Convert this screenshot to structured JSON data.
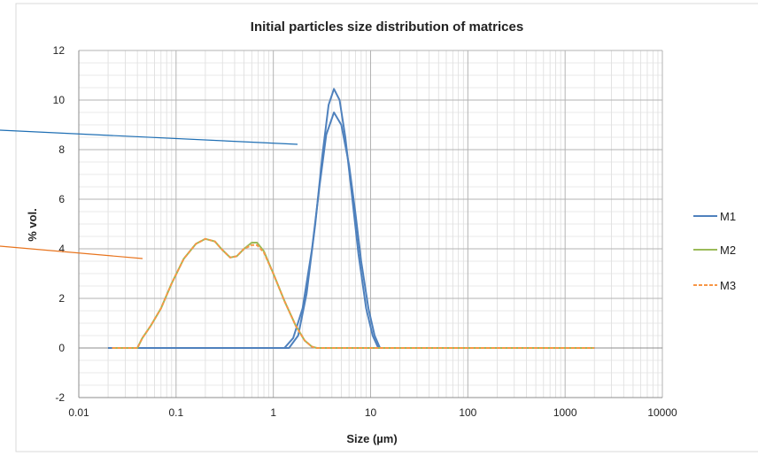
{
  "chart_data": {
    "type": "line",
    "title": "Initial particles size distribution of matrices",
    "xlabel": "Size (µm)",
    "ylabel": "% vol.",
    "x_scale": "log",
    "xlim": [
      0.01,
      10000
    ],
    "ylim": [
      -2,
      12
    ],
    "x_ticks": [
      "0.01",
      "0.1",
      "1",
      "10",
      "100",
      "1000",
      "10000"
    ],
    "y_ticks": [
      "-2",
      "0",
      "2",
      "4",
      "6",
      "8",
      "10",
      "12"
    ],
    "grid": true,
    "legend_position": "right",
    "series": [
      {
        "name": "M1",
        "color": "#4f81bd",
        "style": "solid",
        "curves": [
          {
            "x": [
              0.02,
              1.3,
              1.6,
              2.0,
              2.5,
              3.0,
              3.5,
              4.2,
              5.0,
              6.0,
              7.0,
              8.0,
              9.5,
              11.0,
              12.5,
              2000
            ],
            "y": [
              0,
              0,
              0.4,
              1.6,
              4.0,
              6.6,
              8.6,
              9.5,
              9.0,
              7.4,
              5.4,
              3.5,
              1.6,
              0.5,
              0,
              0
            ]
          },
          {
            "x": [
              0.02,
              1.45,
              1.8,
              2.2,
              2.7,
              3.2,
              3.7,
              4.2,
              4.8,
              5.5,
              6.5,
              7.5,
              9.0,
              10.5,
              12.0,
              2000
            ],
            "y": [
              0,
              0,
              0.5,
              2.2,
              5.0,
              7.8,
              9.8,
              10.45,
              10.0,
              8.5,
              6.0,
              3.8,
              1.6,
              0.5,
              0,
              0
            ]
          }
        ]
      },
      {
        "name": "M2",
        "color": "#9bbb59",
        "style": "solid",
        "curves": [
          {
            "x": [
              0.022,
              0.04,
              0.045,
              0.055,
              0.07,
              0.09,
              0.12,
              0.16,
              0.2,
              0.25,
              0.3,
              0.36,
              0.42,
              0.5,
              0.6,
              0.68,
              0.8,
              1.0,
              1.3,
              1.7,
              2.1,
              2.5,
              2.8,
              2000
            ],
            "y": [
              0,
              0,
              0.4,
              0.9,
              1.6,
              2.6,
              3.6,
              4.2,
              4.4,
              4.3,
              3.95,
              3.65,
              3.7,
              4.0,
              4.25,
              4.25,
              3.9,
              3.0,
              1.9,
              0.9,
              0.3,
              0.05,
              0,
              0
            ]
          }
        ]
      },
      {
        "name": "M3",
        "color": "#f79646",
        "style": "dashed",
        "curves": [
          {
            "x": [
              0.022,
              0.04,
              0.045,
              0.055,
              0.07,
              0.09,
              0.12,
              0.16,
              0.2,
              0.25,
              0.3,
              0.36,
              0.42,
              0.5,
              0.6,
              0.68,
              0.8,
              1.0,
              1.3,
              1.7,
              2.1,
              2.5,
              2.8,
              2000
            ],
            "y": [
              0,
              0,
              0.4,
              0.9,
              1.6,
              2.6,
              3.6,
              4.2,
              4.4,
              4.3,
              3.95,
              3.65,
              3.7,
              4.0,
              4.15,
              4.15,
              3.85,
              3.0,
              1.9,
              0.9,
              0.3,
              0.05,
              0,
              0
            ]
          }
        ]
      }
    ]
  },
  "annotations": [
    {
      "color": "#1f6fb4"
    },
    {
      "color": "#e8741e"
    }
  ]
}
